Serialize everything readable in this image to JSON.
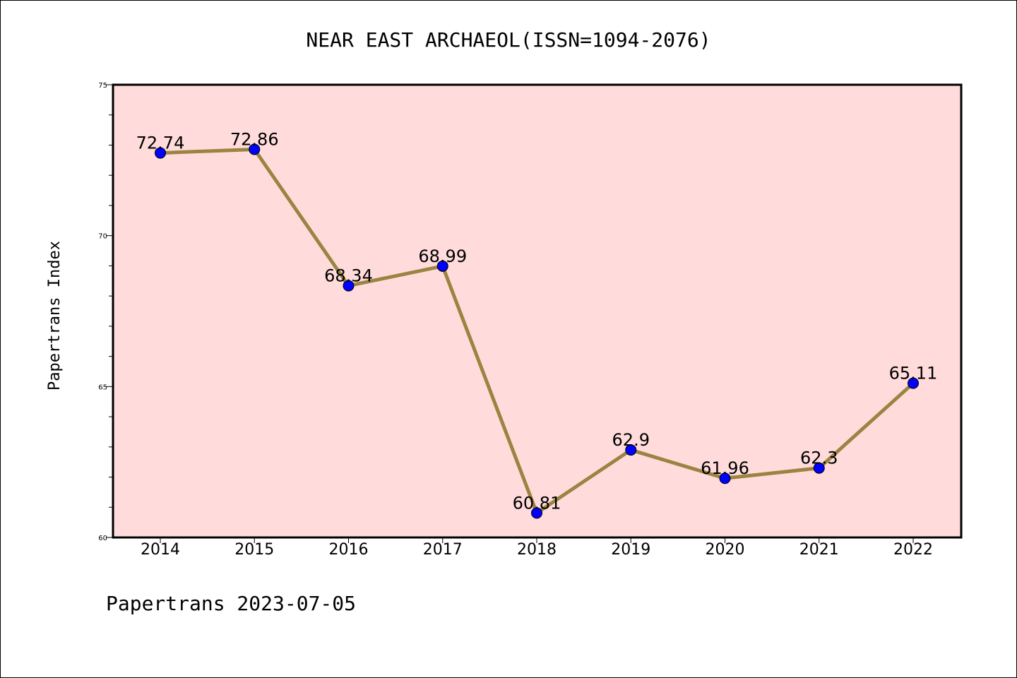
{
  "chart_data": {
    "type": "line",
    "title": "NEAR EAST ARCHAEOL(ISSN=1094-2076)",
    "ylabel": "Papertrans Index",
    "xlabel": "",
    "categories": [
      "2014",
      "2015",
      "2016",
      "2017",
      "2018",
      "2019",
      "2020",
      "2021",
      "2022"
    ],
    "series": [
      {
        "values": [
          72.74,
          72.86,
          68.34,
          68.99,
          60.81,
          62.9,
          61.96,
          62.3,
          65.11
        ],
        "labels": [
          "72.74",
          "72.86",
          "68.34",
          "68.99",
          "60.81",
          "62.9",
          "61.96",
          "62.3",
          "65.11"
        ],
        "line_color": "#9b8441",
        "marker_color": "#0000ff"
      }
    ],
    "ylim": [
      60,
      75
    ],
    "yticks": [
      "60",
      "65",
      "70",
      "75"
    ],
    "plot_background": "#ffdcdb",
    "grid": false,
    "legend": "none"
  },
  "footer": "Papertrans 2023-07-05"
}
